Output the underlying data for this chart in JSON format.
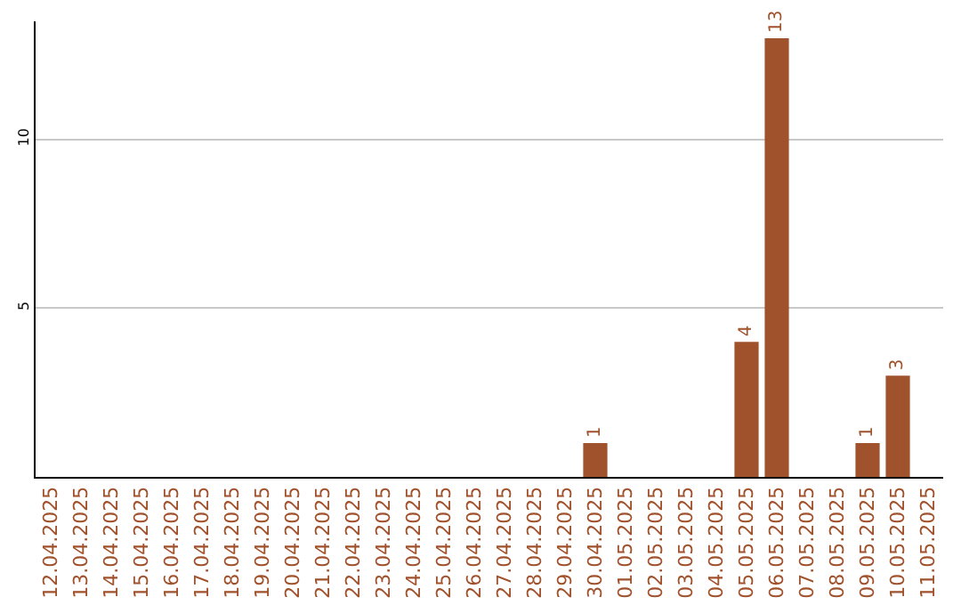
{
  "chart_data": {
    "type": "bar",
    "categories": [
      "12.04.2025",
      "13.04.2025",
      "14.04.2025",
      "15.04.2025",
      "16.04.2025",
      "17.04.2025",
      "18.04.2025",
      "19.04.2025",
      "20.04.2025",
      "21.04.2025",
      "22.04.2025",
      "23.04.2025",
      "24.04.2025",
      "25.04.2025",
      "26.04.2025",
      "27.04.2025",
      "28.04.2025",
      "29.04.2025",
      "30.04.2025",
      "01.05.2025",
      "02.05.2025",
      "03.05.2025",
      "04.05.2025",
      "05.05.2025",
      "06.05.2025",
      "07.05.2025",
      "08.05.2025",
      "09.05.2025",
      "10.05.2025",
      "11.05.2025"
    ],
    "values": [
      0,
      0,
      0,
      0,
      0,
      0,
      0,
      0,
      0,
      0,
      0,
      0,
      0,
      0,
      0,
      0,
      0,
      0,
      1,
      0,
      0,
      0,
      0,
      4,
      13,
      0,
      0,
      1,
      3,
      0
    ],
    "value_labels": [
      null,
      null,
      null,
      null,
      null,
      null,
      null,
      null,
      null,
      null,
      null,
      null,
      null,
      null,
      null,
      null,
      null,
      null,
      "1",
      null,
      null,
      null,
      null,
      "4",
      "13",
      null,
      null,
      "1",
      "3",
      null
    ],
    "color": "#a0522d",
    "ylim": [
      0,
      13.5
    ],
    "yticks": [
      5,
      10
    ],
    "grid": "y",
    "legend": false
  }
}
